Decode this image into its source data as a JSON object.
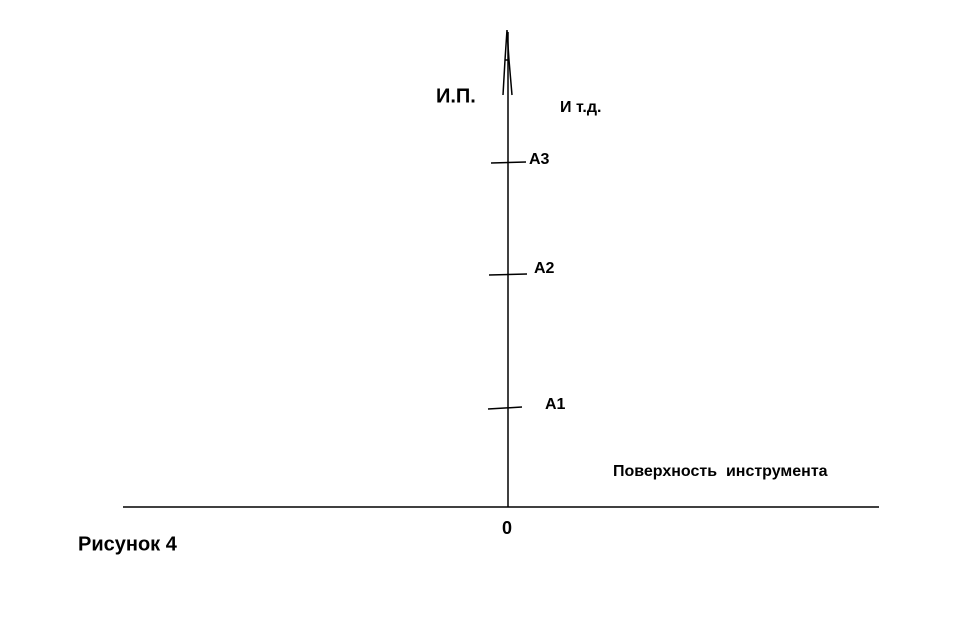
{
  "labels": {
    "start": "И.П.",
    "etc": "И т.д.",
    "a3": "А3",
    "a2": "А2",
    "a1": "А1",
    "surface": "Поверхность  инструмента",
    "origin": "0"
  },
  "caption": "Рисунок 4"
}
